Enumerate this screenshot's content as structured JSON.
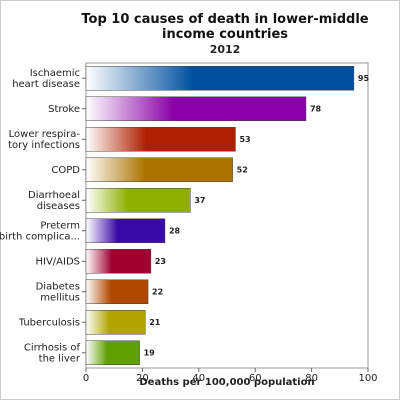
{
  "chart_data": {
    "type": "barh",
    "title": "Top 10 causes of death in lower-middle income countries",
    "subtitle": "2012",
    "xlabel": "Deaths per 100,000 population",
    "categories": [
      "Ischaemic\nheart disease",
      "Stroke",
      "Lower respira-\ntory infections",
      "COPD",
      "Diarrhoeal\ndiseases",
      "Preterm\nbirth complica...",
      "HIV/AIDS",
      "Diabetes\nmellitus",
      "Tuberculosis",
      "Cirrhosis of\nthe liver"
    ],
    "values": [
      95,
      78,
      53,
      52,
      37,
      28,
      23,
      22,
      21,
      19
    ],
    "colors": [
      "#0050a0",
      "#8a00a8",
      "#b02000",
      "#ad7400",
      "#8fb000",
      "#3a0aa8",
      "#a00030",
      "#b04800",
      "#b0a400",
      "#5ea000"
    ],
    "xlim": [
      0,
      100
    ],
    "xticks": [
      0,
      20,
      40,
      60,
      80,
      100
    ]
  }
}
